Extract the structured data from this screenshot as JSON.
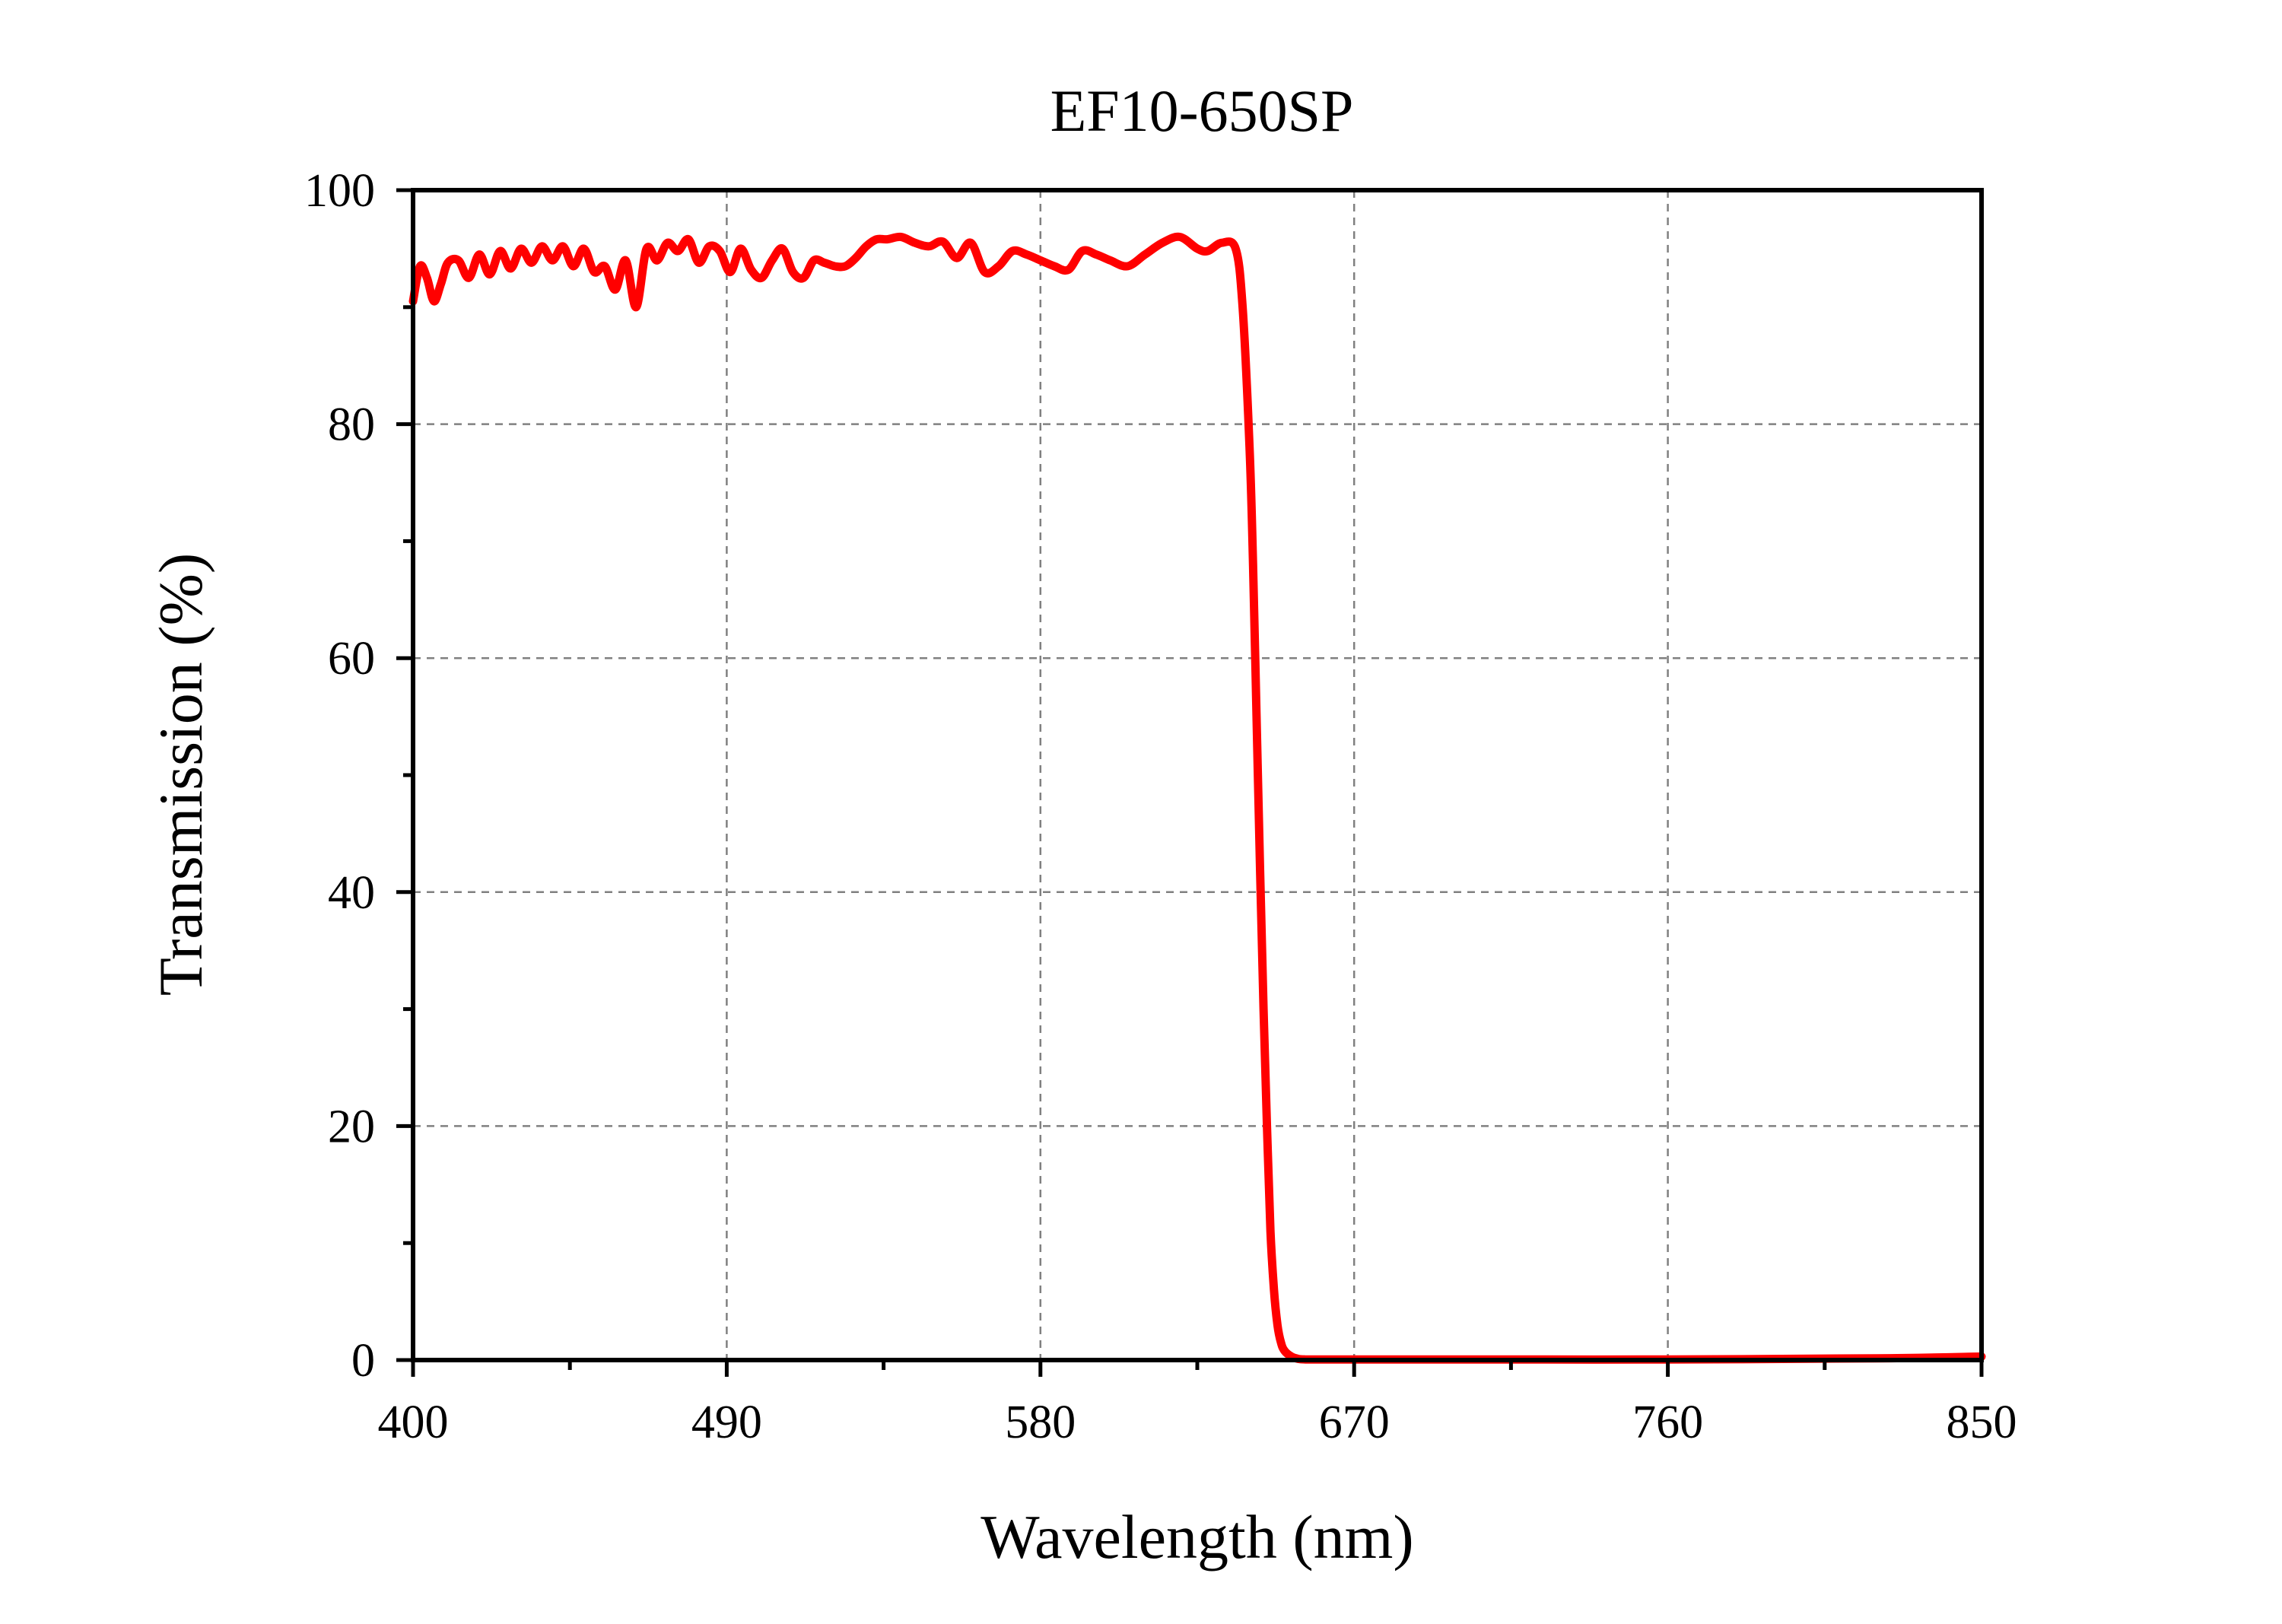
{
  "chart_data": {
    "type": "line",
    "title": "EF10-650SP",
    "xlabel": "Wavelength (nm)",
    "ylabel": "Transmission (%)",
    "xlim": [
      400,
      850
    ],
    "ylim": [
      0,
      100
    ],
    "x_ticks": [
      400,
      490,
      580,
      670,
      760,
      850
    ],
    "y_ticks": [
      0,
      20,
      40,
      60,
      80,
      100
    ],
    "x_tick_labels": [
      "400",
      "490",
      "580",
      "670",
      "760",
      "850"
    ],
    "y_tick_labels": [
      "0",
      "20",
      "40",
      "60",
      "80",
      "100"
    ],
    "grid": true,
    "grid_style": "dashed",
    "legend": "none",
    "series": [
      {
        "color": "#ff0000",
        "x": [
          400,
          402,
          404,
          406,
          408,
          410,
          413,
          416,
          419,
          422,
          425,
          428,
          431,
          434,
          437,
          440,
          443,
          446,
          449,
          452,
          455,
          458,
          461,
          464,
          467,
          470,
          473,
          476,
          479,
          482,
          485,
          488,
          491,
          494,
          497,
          500,
          503,
          506,
          509,
          512,
          515,
          518,
          521,
          524,
          527,
          530,
          533,
          536,
          540,
          544,
          548,
          552,
          556,
          560,
          564,
          568,
          572,
          576,
          580,
          584,
          588,
          592,
          596,
          600,
          605,
          610,
          615,
          620,
          625,
          628,
          632,
          636,
          638,
          640,
          641,
          642,
          643,
          644,
          645,
          646,
          647,
          648,
          649,
          650,
          652,
          654,
          656,
          658,
          662,
          670,
          700,
          760,
          820,
          850
        ],
        "y": [
          90.5,
          93.5,
          92.5,
          90.5,
          92.0,
          93.8,
          94.0,
          92.5,
          94.5,
          92.8,
          94.8,
          93.3,
          95.0,
          93.8,
          95.2,
          94.0,
          95.2,
          93.5,
          95.0,
          93.0,
          93.5,
          91.5,
          94.0,
          90.0,
          95.0,
          94.0,
          95.5,
          94.8,
          95.8,
          93.8,
          95.2,
          94.8,
          93.0,
          95.0,
          93.2,
          92.5,
          94.0,
          95.0,
          93.0,
          92.5,
          94.0,
          93.8,
          93.5,
          93.5,
          94.2,
          95.2,
          95.8,
          95.8,
          96.0,
          95.5,
          95.2,
          95.6,
          94.2,
          95.5,
          93.0,
          93.5,
          94.8,
          94.5,
          94.0,
          93.5,
          93.2,
          94.8,
          94.5,
          94.0,
          93.5,
          94.5,
          95.5,
          96.0,
          95.0,
          94.8,
          95.5,
          95.0,
          90.0,
          78.0,
          68.0,
          55.0,
          42.0,
          30.0,
          20.0,
          11.0,
          6.0,
          3.0,
          1.5,
          0.8,
          0.3,
          0.1,
          0.05,
          0.05,
          0.05,
          0.05,
          0.05,
          0.05,
          0.15,
          0.3
        ]
      }
    ]
  }
}
